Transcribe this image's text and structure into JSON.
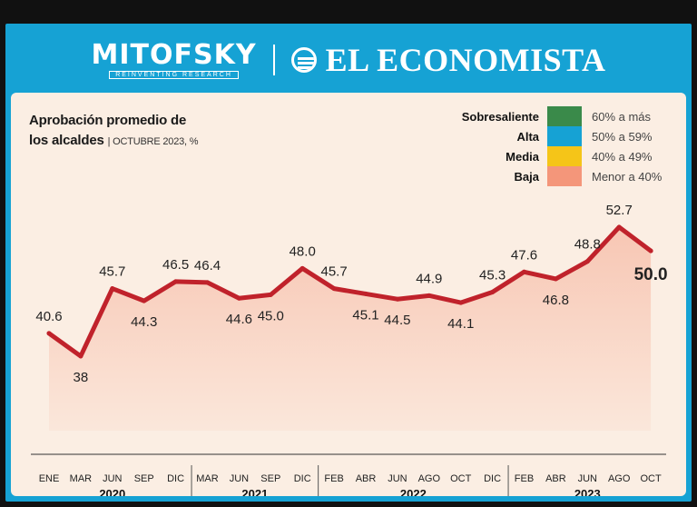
{
  "header": {
    "mitofsky_name": "MITOFSKY",
    "mitofsky_tagline": "REINVENTING RESEARCH",
    "economista_name": "EL ECONOMISTA"
  },
  "title_line1": "Aprobación promedio de",
  "title_line2": "los alcaldes",
  "subtitle": "OCTUBRE 2023, %",
  "legend": [
    {
      "label": "Sobresaliente",
      "range": "60% a más",
      "color": "#3a8a4a"
    },
    {
      "label": "Alta",
      "range": "50% a 59%",
      "color": "#16a2d4"
    },
    {
      "label": "Media",
      "range": "40% a 49%",
      "color": "#f5c518"
    },
    {
      "label": "Baja",
      "range": "Menor a 40%",
      "color": "#f4967a"
    }
  ],
  "chart_data": {
    "type": "line",
    "title": "Aprobación promedio de los alcaldes",
    "subtitle": "OCTUBRE 2023, %",
    "categories": [
      "ENE",
      "MAR",
      "JUN",
      "SEP",
      "DIC",
      "MAR",
      "JUN",
      "SEP",
      "DIC",
      "FEB",
      "ABR",
      "JUN",
      "AGO",
      "OCT",
      "DIC",
      "FEB",
      "ABR",
      "JUN",
      "AGO",
      "OCT"
    ],
    "years": [
      {
        "label": "2020",
        "start": 0,
        "end": 4
      },
      {
        "label": "2021",
        "start": 5,
        "end": 8
      },
      {
        "label": "2022",
        "start": 9,
        "end": 14
      },
      {
        "label": "2023",
        "start": 15,
        "end": 19
      }
    ],
    "values": [
      40.6,
      38,
      45.7,
      44.3,
      46.5,
      46.4,
      44.6,
      45.0,
      48.0,
      45.7,
      45.1,
      44.5,
      44.9,
      44.1,
      45.3,
      47.6,
      46.8,
      48.8,
      52.7,
      50.0
    ],
    "value_labels": [
      "40.6",
      "38",
      "45.7",
      "44.3",
      "46.5",
      "46.4",
      "44.6",
      "45.0",
      "48.0",
      "45.7",
      "45.1",
      "44.5",
      "44.9",
      "44.1",
      "45.3",
      "47.6",
      "46.8",
      "48.8",
      "52.7",
      "50.0"
    ],
    "label_positions": [
      "above",
      "below",
      "above",
      "below",
      "above",
      "above",
      "below",
      "below",
      "above",
      "above",
      "below",
      "below",
      "above",
      "below",
      "above",
      "above",
      "below",
      "above",
      "above",
      "below"
    ],
    "ylim": [
      0,
      56
    ],
    "line_color": "#c0222b",
    "fill_color": "#f4967a"
  }
}
